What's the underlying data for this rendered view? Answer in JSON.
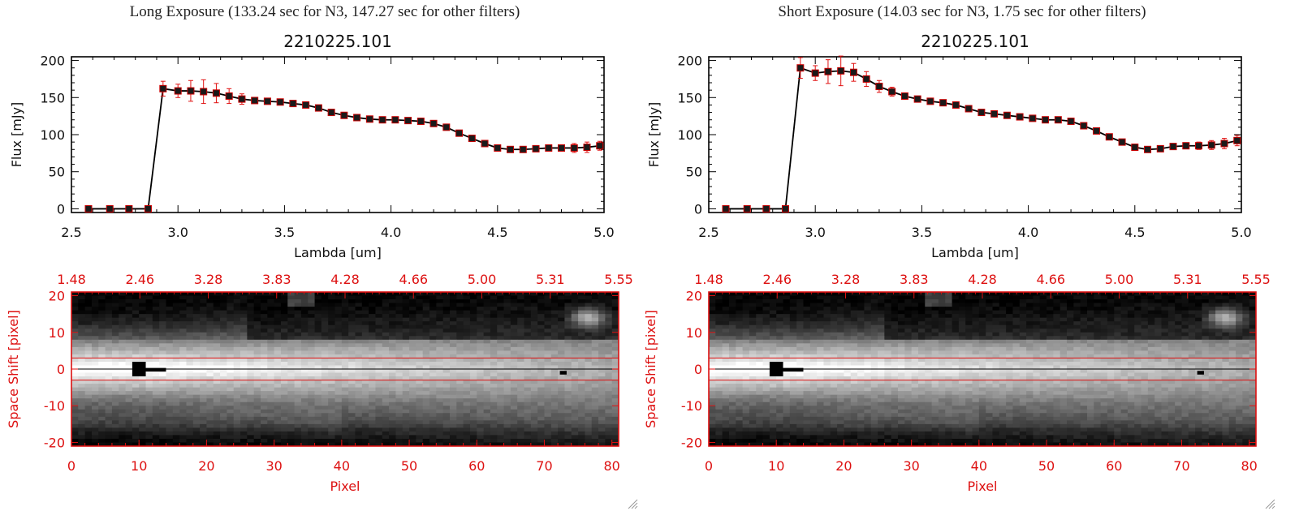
{
  "panels": [
    {
      "title": "Long Exposure (133.24 sec for N3, 147.27 sec for other filters)",
      "chart_data": [
        {
          "type": "line",
          "title": "2210225.101",
          "xlabel": "Lambda [um]",
          "ylabel": "Flux [mJy]",
          "xlim": [
            2.5,
            5.0
          ],
          "ylim": [
            -5,
            205
          ],
          "xticks": [
            "2.5",
            "3.0",
            "3.5",
            "4.0",
            "4.5",
            "5.0"
          ],
          "yticks": [
            "0",
            "50",
            "100",
            "150",
            "200"
          ],
          "series": [
            {
              "name": "flux",
              "x": [
                2.58,
                2.68,
                2.77,
                2.86,
                2.93,
                3.0,
                3.06,
                3.12,
                3.18,
                3.24,
                3.3,
                3.36,
                3.42,
                3.48,
                3.54,
                3.6,
                3.66,
                3.72,
                3.78,
                3.84,
                3.9,
                3.96,
                4.02,
                4.08,
                4.14,
                4.2,
                4.26,
                4.32,
                4.38,
                4.44,
                4.5,
                4.56,
                4.62,
                4.68,
                4.74,
                4.8,
                4.86,
                4.92,
                4.98
              ],
              "y": [
                0,
                0,
                0,
                0,
                162,
                159,
                159,
                158,
                156,
                152,
                148,
                146,
                145,
                144,
                142,
                140,
                136,
                130,
                126,
                123,
                121,
                120,
                120,
                119,
                118,
                115,
                110,
                102,
                95,
                88,
                82,
                80,
                80,
                81,
                82,
                82,
                82,
                83,
                85
              ],
              "err": [
                0,
                0,
                0,
                0,
                10,
                9,
                14,
                16,
                13,
                10,
                7,
                4,
                3,
                3,
                3,
                3,
                3,
                3,
                3,
                3,
                3,
                3,
                3,
                3,
                3,
                3,
                3,
                3,
                3,
                3,
                3,
                3,
                3,
                3,
                3,
                4,
                6,
                7,
                6
              ]
            }
          ]
        },
        {
          "type": "heatmap",
          "xlabel": "Pixel",
          "ylabel": "Space Shift [pixel]",
          "xlim": [
            0,
            81
          ],
          "ylim": [
            -21,
            21
          ],
          "xticks": [
            "0",
            "10",
            "20",
            "30",
            "40",
            "50",
            "60",
            "70",
            "80"
          ],
          "yticks": [
            "-20",
            "-10",
            "0",
            "10",
            "20"
          ],
          "top_ticks": [
            "1.48",
            "2.46",
            "3.28",
            "3.83",
            "4.28",
            "4.66",
            "5.00",
            "5.31",
            "5.55"
          ],
          "aperture_rows": [
            3,
            -3
          ],
          "source_pixel": 10
        }
      ]
    },
    {
      "title": "Short Exposure (14.03 sec for N3, 1.75 sec for other filters)",
      "chart_data": [
        {
          "type": "line",
          "title": "2210225.101",
          "xlabel": "Lambda [um]",
          "ylabel": "Flux [mJy]",
          "xlim": [
            2.5,
            5.0
          ],
          "ylim": [
            -5,
            205
          ],
          "xticks": [
            "2.5",
            "3.0",
            "3.5",
            "4.0",
            "4.5",
            "5.0"
          ],
          "yticks": [
            "0",
            "50",
            "100",
            "150",
            "200"
          ],
          "series": [
            {
              "name": "flux",
              "x": [
                2.58,
                2.68,
                2.77,
                2.86,
                2.93,
                3.0,
                3.06,
                3.12,
                3.18,
                3.24,
                3.3,
                3.36,
                3.42,
                3.48,
                3.54,
                3.6,
                3.66,
                3.72,
                3.78,
                3.84,
                3.9,
                3.96,
                4.02,
                4.08,
                4.14,
                4.2,
                4.26,
                4.32,
                4.38,
                4.44,
                4.5,
                4.56,
                4.62,
                4.68,
                4.74,
                4.8,
                4.86,
                4.92,
                4.98
              ],
              "y": [
                0,
                0,
                0,
                0,
                190,
                183,
                185,
                186,
                184,
                175,
                165,
                158,
                152,
                148,
                145,
                143,
                140,
                135,
                130,
                128,
                126,
                124,
                122,
                120,
                120,
                118,
                112,
                105,
                97,
                90,
                83,
                80,
                81,
                84,
                85,
                85,
                86,
                88,
                92
              ],
              "err": [
                0,
                0,
                0,
                0,
                14,
                10,
                16,
                20,
                12,
                10,
                8,
                6,
                4,
                3,
                3,
                3,
                3,
                3,
                3,
                3,
                3,
                3,
                3,
                3,
                3,
                3,
                3,
                3,
                3,
                3,
                3,
                3,
                3,
                3,
                4,
                5,
                6,
                7,
                7
              ]
            }
          ]
        },
        {
          "type": "heatmap",
          "xlabel": "Pixel",
          "ylabel": "Space Shift [pixel]",
          "xlim": [
            0,
            81
          ],
          "ylim": [
            -21,
            21
          ],
          "xticks": [
            "0",
            "10",
            "20",
            "30",
            "40",
            "50",
            "60",
            "70",
            "80"
          ],
          "yticks": [
            "-20",
            "-10",
            "0",
            "10",
            "20"
          ],
          "top_ticks": [
            "1.48",
            "2.46",
            "3.28",
            "3.83",
            "4.28",
            "4.66",
            "5.00",
            "5.31",
            "5.55"
          ],
          "aperture_rows": [
            3,
            -3
          ],
          "source_pixel": 10
        }
      ]
    }
  ],
  "colors": {
    "axis": "#000000",
    "error_bar": "#e01010",
    "marker": "#1a1a1a",
    "marker_edge": "#cc0000",
    "image_axis": "#dd1111",
    "text": "#222222"
  }
}
